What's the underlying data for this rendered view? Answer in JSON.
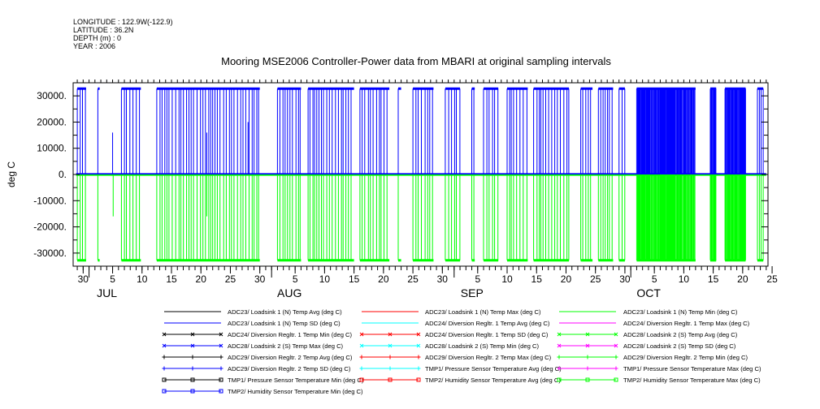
{
  "meta": {
    "longitude": "LONGITUDE : 122.9W(-122.9)",
    "latitude": "LATITUDE : 36.2N",
    "depth": "DEPTH (m) : 0",
    "year": "YEAR : 2006"
  },
  "chart_data": {
    "type": "line",
    "title": "Mooring MSE2006 Controller-Power data from MBARI at original sampling intervals",
    "ylabel": "deg C",
    "ylim": [
      -35000,
      35000
    ],
    "yticks": [
      {
        "v": 30000,
        "label": "30000."
      },
      {
        "v": 20000,
        "label": "20000."
      },
      {
        "v": 10000,
        "label": "10000."
      },
      {
        "v": 0,
        "label": "0."
      },
      {
        "v": -10000,
        "label": "-10000."
      },
      {
        "v": -20000,
        "label": "-20000."
      },
      {
        "v": -30000,
        "label": "-30000."
      }
    ],
    "xlim": [
      -2.7,
      115.3
    ],
    "x_unit": "days since 2006-07-01",
    "xticks": [
      {
        "v": -1,
        "label": "30"
      },
      {
        "v": 4,
        "label": "5"
      },
      {
        "v": 9,
        "label": "10"
      },
      {
        "v": 14,
        "label": "15"
      },
      {
        "v": 19,
        "label": "20"
      },
      {
        "v": 24,
        "label": "25"
      },
      {
        "v": 29,
        "label": "30"
      },
      {
        "v": 35,
        "label": "5"
      },
      {
        "v": 40,
        "label": "10"
      },
      {
        "v": 45,
        "label": "15"
      },
      {
        "v": 50,
        "label": "20"
      },
      {
        "v": 55,
        "label": "25"
      },
      {
        "v": 60,
        "label": "30"
      },
      {
        "v": 66,
        "label": "5"
      },
      {
        "v": 71,
        "label": "10"
      },
      {
        "v": 76,
        "label": "15"
      },
      {
        "v": 81,
        "label": "20"
      },
      {
        "v": 86,
        "label": "25"
      },
      {
        "v": 91,
        "label": "30"
      },
      {
        "v": 96,
        "label": "5"
      },
      {
        "v": 101,
        "label": "10"
      },
      {
        "v": 106,
        "label": "15"
      },
      {
        "v": 111,
        "label": "20"
      },
      {
        "v": 116,
        "label": "25"
      }
    ],
    "months": [
      {
        "v": 0,
        "label": "JUL"
      },
      {
        "v": 31,
        "label": "AUG"
      },
      {
        "v": 62,
        "label": "SEP"
      },
      {
        "v": 92,
        "label": "OCT"
      }
    ],
    "series_summary": [
      {
        "name": "ADC23/ Loadsink 1 (N) Temp SD (deg C)",
        "color": "#0000ff",
        "high": 32767,
        "low": 0
      },
      {
        "name": "ADC23/ Loadsink 1 (N) Temp Min (deg C)",
        "color": "#00ff00",
        "high": 0,
        "low": -32767
      }
    ],
    "spike_ranges": [
      [
        -2,
        -0.5
      ],
      [
        1.5,
        1.8
      ],
      [
        5.5,
        8.8
      ],
      [
        11.5,
        29
      ],
      [
        32,
        36
      ],
      [
        37.2,
        45
      ],
      [
        46,
        51
      ],
      [
        52.5,
        53
      ],
      [
        55,
        58.5
      ],
      [
        60.5,
        63
      ],
      [
        65,
        65.5
      ],
      [
        67,
        69.5
      ],
      [
        71,
        74.5
      ],
      [
        75.5,
        81.5
      ],
      [
        83.5,
        85.5
      ],
      [
        86.5,
        89
      ],
      [
        90,
        91
      ],
      [
        93,
        103
      ],
      [
        105.5,
        106.5
      ],
      [
        108,
        111.5
      ],
      [
        113.5,
        114.5
      ]
    ],
    "dense_ranges": [
      [
        95,
        98
      ],
      [
        102,
        108
      ],
      [
        110,
        113
      ]
    ],
    "legend": [
      {
        "name": "ADC23/ Loadsink 1 (N) Temp Avg (deg C)",
        "color": "#000000",
        "marker": "none"
      },
      {
        "name": "ADC23/ Loadsink 1 (N) Temp Max (deg C)",
        "color": "#ff0000",
        "marker": "none"
      },
      {
        "name": "ADC23/ Loadsink 1 (N) Temp Min (deg C)",
        "color": "#00ff00",
        "marker": "none"
      },
      {
        "name": "ADC23/ Loadsink 1 (N) Temp SD (deg C)",
        "color": "#0000ff",
        "marker": "none"
      },
      {
        "name": "ADC24/ Diversion Regltr. 1 Temp Avg (deg C)",
        "color": "#00ffff",
        "marker": "none"
      },
      {
        "name": "ADC24/ Diversion Regltr. 1 Temp Max (deg C)",
        "color": "#ff00ff",
        "marker": "none"
      },
      {
        "name": "ADC24/ Diversion Regltr. 1 Temp Min (deg C)",
        "color": "#000000",
        "marker": "x"
      },
      {
        "name": "ADC24/ Diversion Regltr. 1 Temp SD (deg C)",
        "color": "#ff0000",
        "marker": "x"
      },
      {
        "name": "ADC28/ Loadsink 2 (S) Temp Avg (deg C)",
        "color": "#00ff00",
        "marker": "x"
      },
      {
        "name": "ADC28/ Loadsink 2 (S) Temp Max (deg C)",
        "color": "#0000ff",
        "marker": "x"
      },
      {
        "name": "ADC28/ Loadsink 2 (S) Temp Min (deg C)",
        "color": "#00ffff",
        "marker": "x"
      },
      {
        "name": "ADC28/ Loadsink 2 (S) Temp SD (deg C)",
        "color": "#ff00ff",
        "marker": "x"
      },
      {
        "name": "ADC29/ Diversion Regltr. 2 Temp Avg (deg C)",
        "color": "#000000",
        "marker": "plus"
      },
      {
        "name": "ADC29/ Diversion Regltr. 2 Temp Max (deg C)",
        "color": "#ff0000",
        "marker": "plus"
      },
      {
        "name": "ADC29/ Diversion Regltr. 2 Temp Min (deg C)",
        "color": "#00ff00",
        "marker": "plus"
      },
      {
        "name": "ADC29/ Diversion Regltr. 2 Temp SD (deg C)",
        "color": "#0000ff",
        "marker": "plus"
      },
      {
        "name": "TMP1/ Pressure Sensor Temperature Avg (deg C)",
        "color": "#00ffff",
        "marker": "plus"
      },
      {
        "name": "TMP1/ Pressure Sensor Temperature Max (deg C)",
        "color": "#ff00ff",
        "marker": "plus"
      },
      {
        "name": "TMP1/ Pressure Sensor Temperature Min (deg C)",
        "color": "#000000",
        "marker": "square"
      },
      {
        "name": "TMP2/ Humidity Sensor Temperature Avg (deg C)",
        "color": "#ff0000",
        "marker": "square"
      },
      {
        "name": "TMP2/ Humidity Sensor Temperature Max (deg C)",
        "color": "#00ff00",
        "marker": "square"
      },
      {
        "name": "TMP2/ Humidity Sensor Temperature Min (deg C)",
        "color": "#0000ff",
        "marker": "square"
      }
    ]
  }
}
